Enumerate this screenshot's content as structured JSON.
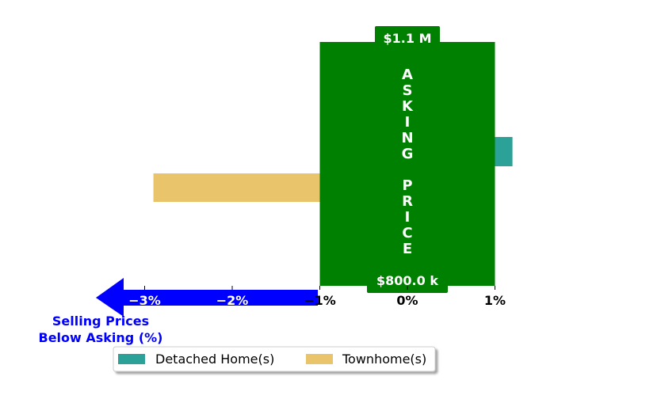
{
  "chart_data": {
    "type": "bar",
    "orientation": "horizontal",
    "series": [
      {
        "name": "Detached Home(s)",
        "value": 1.2,
        "color": "#2ca198"
      },
      {
        "name": "Townhome(s)",
        "value": -2.9,
        "color": "#e9c46a"
      }
    ],
    "xlim": [
      -3.7,
      1.7
    ],
    "x_ticks": [
      -3,
      -2,
      -1,
      0,
      1
    ],
    "x_tick_labels": [
      "−3%",
      "−2%",
      "−1%",
      "0%",
      "1%"
    ],
    "band": {
      "x_range": [
        -1,
        1
      ],
      "color": "#008000",
      "text": "ASKING PRICE",
      "top_label": "$1.1 M",
      "bottom_label": "$800.0 k"
    },
    "arrow": {
      "color": "#0000ff",
      "caption_line1": "Selling Prices",
      "caption_line2": "Below Asking (%)"
    },
    "legend": {
      "placement": "bottom-center",
      "columns": 2
    },
    "grid": false
  }
}
